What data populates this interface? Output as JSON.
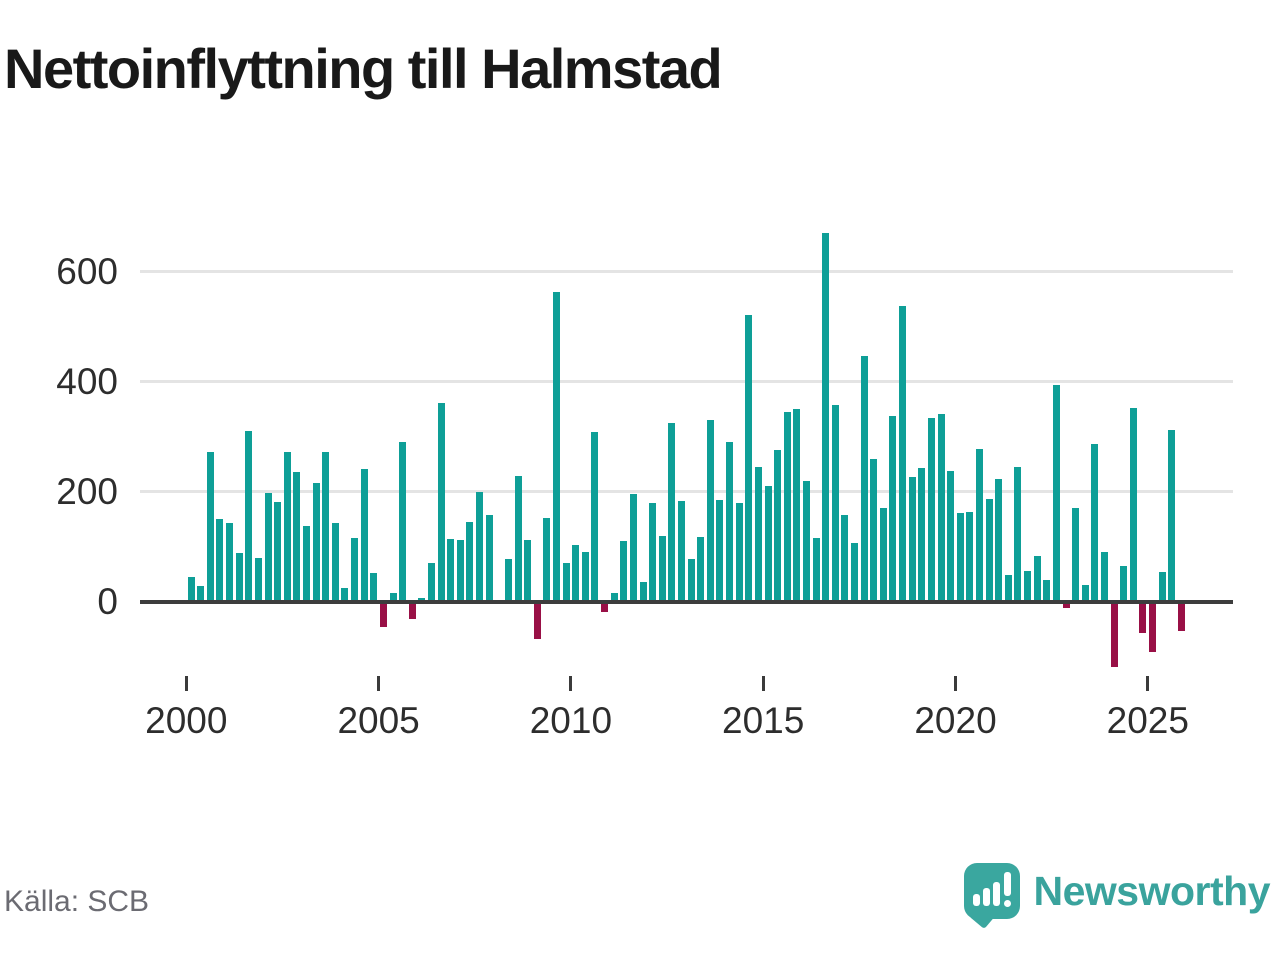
{
  "title": "Nettoinflyttning till Halmstad",
  "source": "Källa: SCB",
  "logo": {
    "text": "Newsworthy"
  },
  "chart_data": {
    "type": "bar",
    "title": "Nettoinflyttning till Halmstad",
    "x_start": "2000 Q1",
    "frequency": "quarterly",
    "x_tick_labels": [
      "2000",
      "2005",
      "2010",
      "2015",
      "2020",
      "2025"
    ],
    "y_ticks": [
      0,
      200,
      400,
      600
    ],
    "ylim": [
      -130,
      700
    ],
    "grid": "horizontal",
    "positive_color": "#0e9f97",
    "negative_color": "#991046",
    "series": [
      {
        "name": "Nettoinflyttning",
        "values": [
          46,
          29,
          273,
          150,
          144,
          89,
          311,
          80,
          198,
          182,
          273,
          237,
          138,
          217,
          273,
          144,
          25,
          116,
          242,
          52,
          -46,
          17,
          291,
          -31,
          7,
          70,
          361,
          114,
          113,
          146,
          199,
          158,
          0,
          78,
          228,
          113,
          -68,
          153,
          564,
          71,
          104,
          90,
          308,
          -19,
          17,
          110,
          196,
          37,
          180,
          120,
          325,
          184,
          78,
          118,
          330,
          185,
          290,
          180,
          522,
          246,
          210,
          276,
          345,
          350,
          220,
          116,
          670,
          358,
          158,
          107,
          447,
          260,
          170,
          337,
          537,
          227,
          244,
          334,
          341,
          238,
          161,
          163,
          278,
          188,
          224,
          49,
          246,
          57,
          84,
          40,
          395,
          -10,
          170,
          30,
          287,
          91,
          -118,
          66,
          352,
          -57,
          -90,
          55,
          313,
          -52
        ]
      }
    ]
  }
}
